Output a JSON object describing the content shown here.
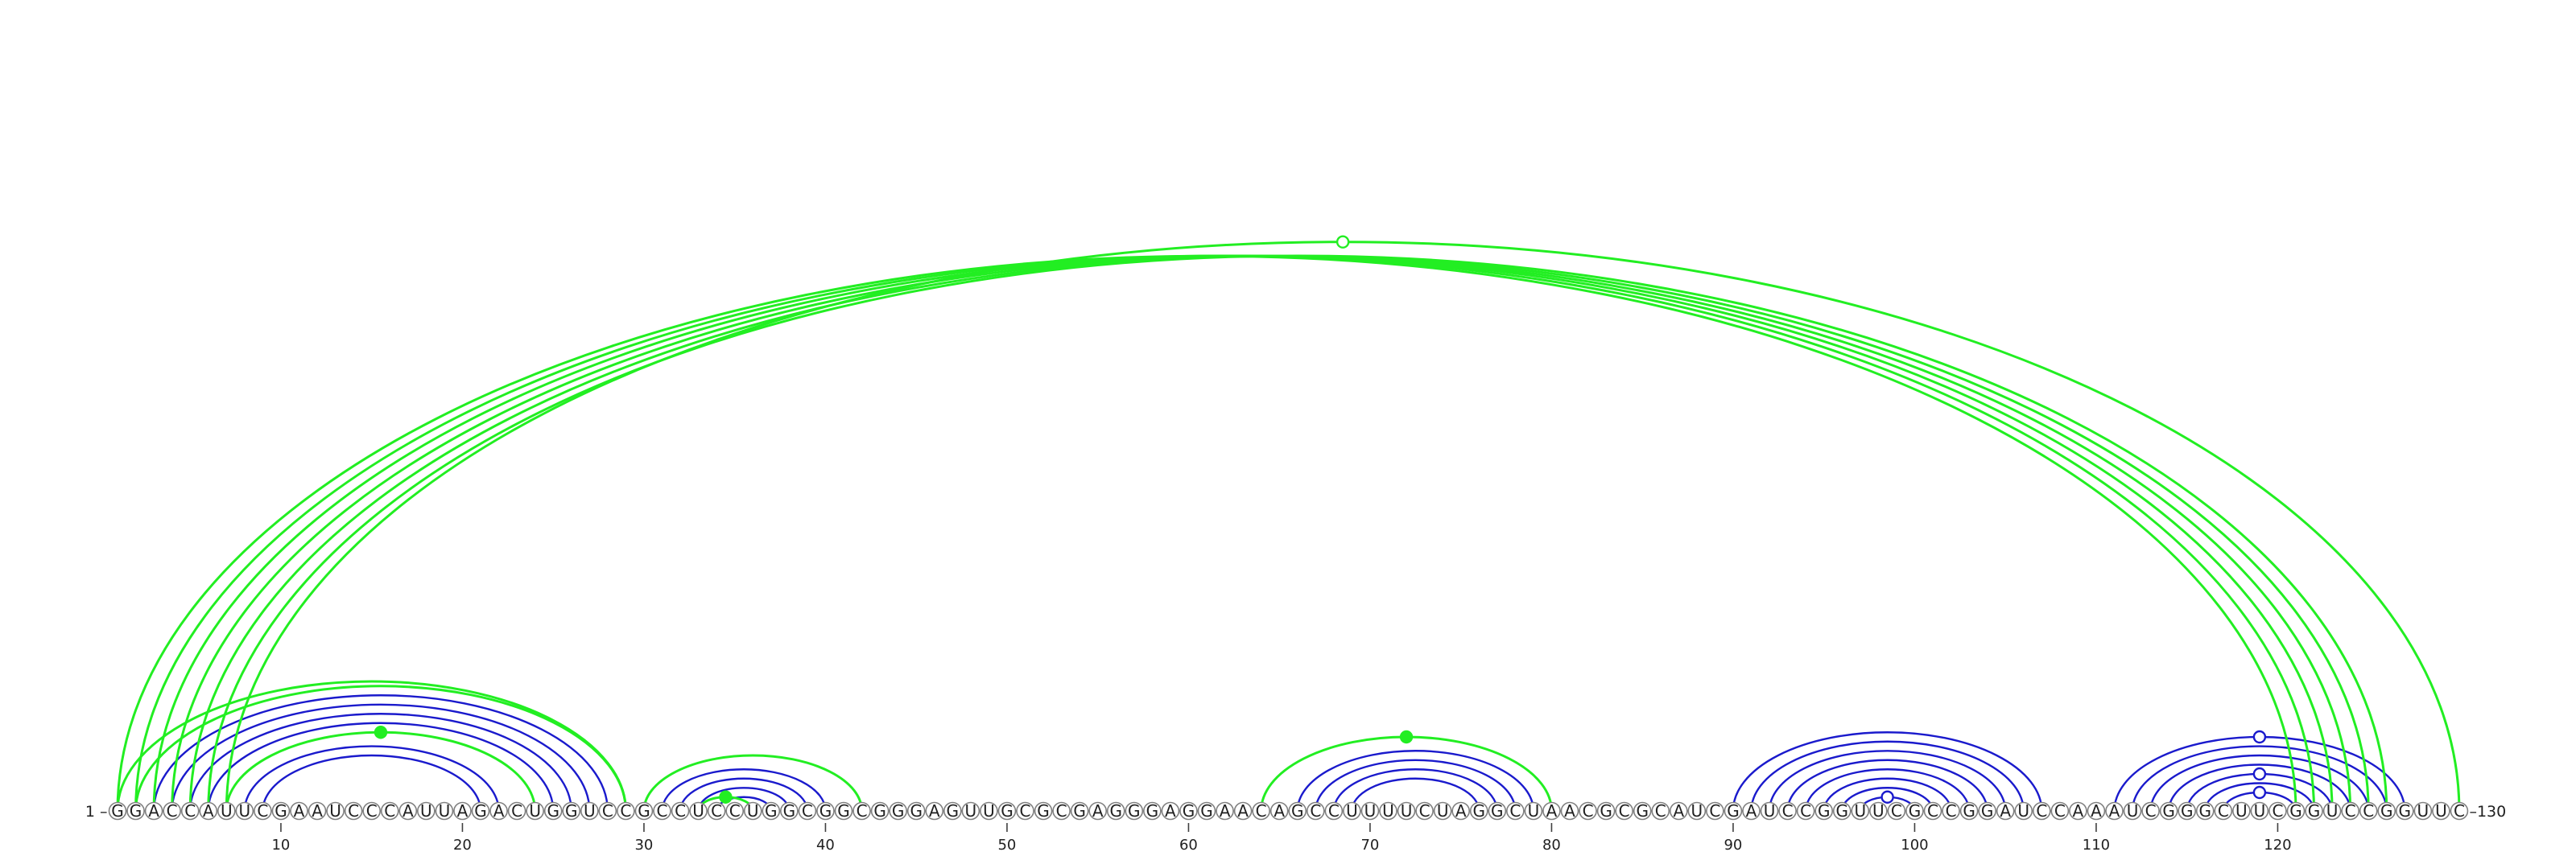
{
  "sequence": "GGACCAUUCGAAUCCCAUUAGACUGGUCCGCCUCCUGGCGGCGGGAGUUGCGCGAGGGAGGAACAGCCUUUUCUAGGCUAACGCGCAUCGAUCCGGUUCGCCGGAUCCAAAUCGGGCUUCGGUCCGGUUC",
  "start_label": "1 –",
  "end_label": "–130",
  "ticks": [
    10,
    20,
    30,
    40,
    50,
    60,
    70,
    80,
    90,
    100,
    110,
    120
  ],
  "colors": {
    "blue": "#1a1acc",
    "green": "#22ee22",
    "backbone": "#888888"
  },
  "arcs": {
    "blue": [
      [
        3,
        28
      ],
      [
        4,
        27
      ],
      [
        5,
        26
      ],
      [
        6,
        25
      ],
      [
        8,
        22
      ],
      [
        9,
        21
      ],
      [
        31,
        40
      ],
      [
        32,
        39
      ],
      [
        33,
        38
      ],
      [
        34,
        37
      ],
      [
        66,
        79
      ],
      [
        67,
        78
      ],
      [
        68,
        77
      ],
      [
        69,
        76
      ],
      [
        90,
        107
      ],
      [
        91,
        106
      ],
      [
        92,
        105
      ],
      [
        93,
        104
      ],
      [
        94,
        103
      ],
      [
        95,
        102
      ],
      [
        96,
        101
      ],
      [
        97,
        100
      ],
      [
        111,
        127
      ],
      [
        112,
        126
      ],
      [
        113,
        125
      ],
      [
        114,
        124
      ],
      [
        115,
        123
      ],
      [
        116,
        122
      ],
      [
        117,
        121
      ]
    ],
    "green": [
      [
        1,
        121
      ],
      [
        2,
        122
      ],
      [
        3,
        123
      ],
      [
        4,
        124
      ],
      [
        5,
        125
      ],
      [
        6,
        126
      ],
      [
        7,
        130
      ],
      [
        1,
        29
      ],
      [
        2,
        29
      ],
      [
        7,
        24
      ],
      [
        30,
        42
      ],
      [
        33,
        36
      ],
      [
        64,
        80
      ]
    ]
  },
  "markers": [
    {
      "i": 15,
      "j": 15,
      "color": "green",
      "filled": true,
      "arc_i": 7,
      "arc_j": 24
    },
    {
      "i": 34,
      "j": 34,
      "color": "green",
      "filled": true,
      "arc_i": 33,
      "arc_j": 36
    },
    {
      "i": 72,
      "j": 72,
      "color": "green",
      "filled": true,
      "arc_i": 64,
      "arc_j": 80
    },
    {
      "color": "green",
      "filled": false,
      "arc_i": 7,
      "arc_j": 130
    },
    {
      "color": "blue",
      "filled": false,
      "arc_i": 97,
      "arc_j": 100
    },
    {
      "color": "blue",
      "filled": false,
      "arc_i": 111,
      "arc_j": 127
    },
    {
      "color": "blue",
      "filled": false,
      "arc_i": 115,
      "arc_j": 123
    },
    {
      "color": "blue",
      "filled": false,
      "arc_i": 117,
      "arc_j": 121
    }
  ]
}
